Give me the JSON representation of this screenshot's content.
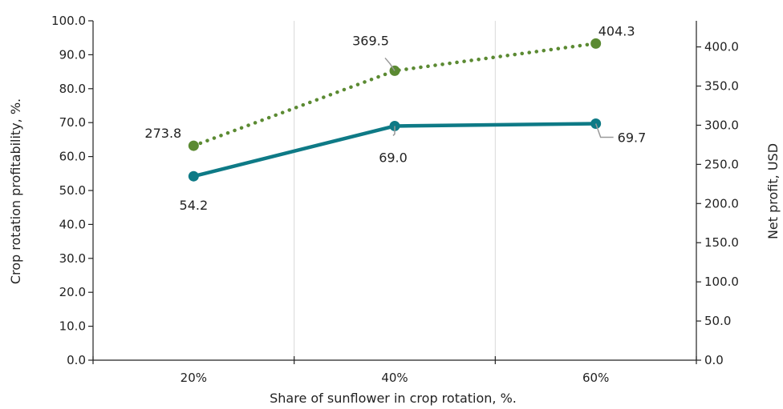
{
  "chart_data": {
    "type": "line",
    "categories": [
      "20%",
      "40%",
      "60%"
    ],
    "xlabel": "Share of sunflower in crop rotation, %.",
    "ylabel": "Crop rotation profitability, %.",
    "y2label": "Net profit, USD",
    "ylim": [
      0,
      100
    ],
    "y2lim": [
      0,
      433.3
    ],
    "yticks": [
      "0.0",
      "10.0",
      "20.0",
      "30.0",
      "40.0",
      "50.0",
      "60.0",
      "70.0",
      "80.0",
      "90.0",
      "100.0"
    ],
    "y2ticks": [
      "0.0",
      "50.0",
      "100.0",
      "150.0",
      "200.0",
      "250.0",
      "300.0",
      "350.0",
      "400.0"
    ],
    "grid": "vertical",
    "series": [
      {
        "axis": "left",
        "style": "solid",
        "color": "#0e7a86",
        "values": [
          54.2,
          69.0,
          69.7
        ],
        "labels": [
          "54.2",
          "69.0",
          "69.7"
        ]
      },
      {
        "axis": "right",
        "style": "dotted",
        "color": "#5b8a32",
        "values": [
          273.8,
          369.5,
          404.3
        ],
        "labels": [
          "273.8",
          "369.5",
          "404.3"
        ]
      }
    ]
  }
}
